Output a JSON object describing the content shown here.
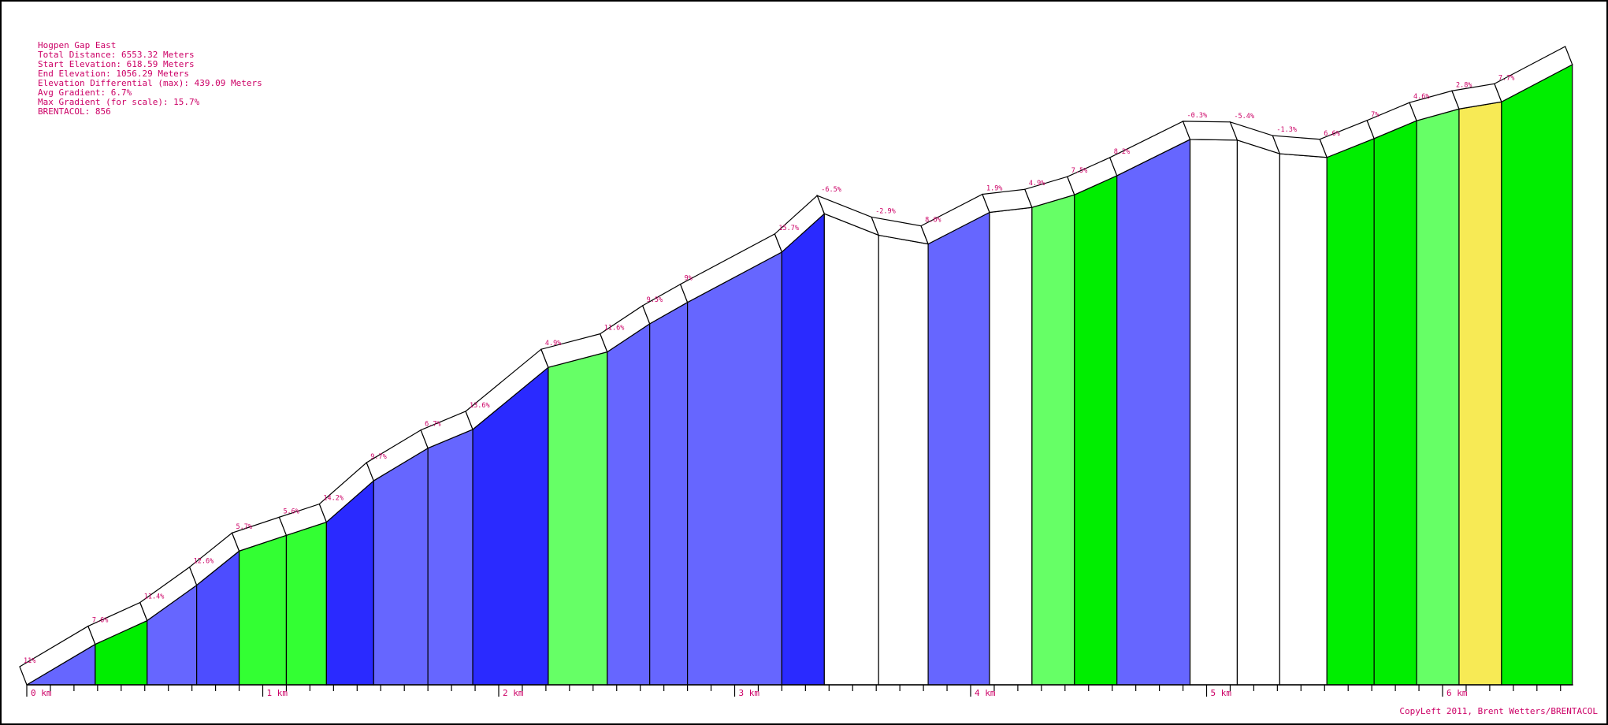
{
  "info": [
    "Hogpen Gap East",
    "Total Distance: 6553.32 Meters",
    "Start Elevation: 618.59 Meters",
    "End Elevation: 1056.29 Meters",
    "Elevation Differential (max): 439.09 Meters",
    "Avg Gradient: 6.7%",
    "Max Gradient (for scale): 15.7%",
    "BRENTACOL: 856"
  ],
  "copyright": "CopyLeft 2011, Brent Wetters/BRENTACOL",
  "colors": {
    "text": "#cc0066",
    "outline": "#000000",
    "white": "#ffffff",
    "blue_light": "#6666ff",
    "blue_mid": "#4d4dff",
    "blue_dark": "#2a2aff",
    "green_light": "#66ff66",
    "green_mid": "#33ff33",
    "green_bright": "#00ee00",
    "yellow": "#f7ea55"
  },
  "chart_data": {
    "type": "area",
    "x_unit": "km",
    "x_ticks": [
      "0 km",
      "1 km",
      "2 km",
      "3 km",
      "4 km",
      "5 km",
      "6 km"
    ],
    "xlim": [
      0,
      6.55332
    ],
    "ylim": [
      618.59,
      1056.29
    ],
    "grid": false,
    "segments": [
      {
        "start_km": 0.0,
        "end_km": 0.29,
        "gradient": "11%",
        "elev_start": 618.6,
        "elev_end": 647.2,
        "color": "blue_light"
      },
      {
        "start_km": 0.29,
        "end_km": 0.51,
        "gradient": "7.6%",
        "elev_start": 647.2,
        "elev_end": 663.9,
        "color": "green_bright"
      },
      {
        "start_km": 0.51,
        "end_km": 0.72,
        "gradient": "11.4%",
        "elev_start": 663.9,
        "elev_end": 688.9,
        "color": "blue_light"
      },
      {
        "start_km": 0.72,
        "end_km": 0.9,
        "gradient": "12.6%",
        "elev_start": 688.9,
        "elev_end": 713.0,
        "color": "blue_mid"
      },
      {
        "start_km": 0.9,
        "end_km": 1.1,
        "gradient": "5.7%",
        "elev_start": 713.0,
        "elev_end": 724.1,
        "color": "green_mid"
      },
      {
        "start_km": 1.1,
        "end_km": 1.27,
        "gradient": "5.6%",
        "elev_start": 724.1,
        "elev_end": 733.4,
        "color": "green_mid"
      },
      {
        "start_km": 1.27,
        "end_km": 1.47,
        "gradient": "14.2%",
        "elev_start": 733.4,
        "elev_end": 762.6,
        "color": "blue_dark"
      },
      {
        "start_km": 1.47,
        "end_km": 1.7,
        "gradient": "9.7%",
        "elev_start": 762.6,
        "elev_end": 785.6,
        "color": "blue_light"
      },
      {
        "start_km": 1.7,
        "end_km": 1.89,
        "gradient": "6.7%",
        "elev_start": 785.6,
        "elev_end": 798.8,
        "color": "blue_light"
      },
      {
        "start_km": 1.89,
        "end_km": 2.21,
        "gradient": "13.6%",
        "elev_start": 798.8,
        "elev_end": 842.6,
        "color": "blue_dark"
      },
      {
        "start_km": 2.21,
        "end_km": 2.46,
        "gradient": "4.9%",
        "elev_start": 842.6,
        "elev_end": 853.5,
        "color": "green_light"
      },
      {
        "start_km": 2.46,
        "end_km": 2.64,
        "gradient": "11.6%",
        "elev_start": 853.5,
        "elev_end": 873.4,
        "color": "blue_light"
      },
      {
        "start_km": 2.64,
        "end_km": 2.8,
        "gradient": "9.5%",
        "elev_start": 873.4,
        "elev_end": 888.5,
        "color": "blue_light"
      },
      {
        "start_km": 2.8,
        "end_km": 3.2,
        "gradient": "9%",
        "elev_start": 888.5,
        "elev_end": 924.0,
        "color": "blue_light"
      },
      {
        "start_km": 3.2,
        "end_km": 3.38,
        "gradient": "15.7%",
        "elev_start": 924.0,
        "elev_end": 951.1,
        "color": "blue_dark"
      },
      {
        "start_km": 3.38,
        "end_km": 3.61,
        "gradient": "-6.5%",
        "elev_start": 951.1,
        "elev_end": 935.9,
        "color": "white"
      },
      {
        "start_km": 3.61,
        "end_km": 3.82,
        "gradient": "-2.9%",
        "elev_start": 935.9,
        "elev_end": 929.7,
        "color": "white"
      },
      {
        "start_km": 3.82,
        "end_km": 4.08,
        "gradient": "8.6%",
        "elev_start": 929.7,
        "elev_end": 952.0,
        "color": "blue_light"
      },
      {
        "start_km": 4.08,
        "end_km": 4.26,
        "gradient": "1.9%",
        "elev_start": 952.0,
        "elev_end": 955.5,
        "color": "white"
      },
      {
        "start_km": 4.26,
        "end_km": 4.44,
        "gradient": "4.9%",
        "elev_start": 955.5,
        "elev_end": 964.4,
        "color": "green_light"
      },
      {
        "start_km": 4.44,
        "end_km": 4.62,
        "gradient": "7.5%",
        "elev_start": 964.4,
        "elev_end": 977.9,
        "color": "green_bright"
      },
      {
        "start_km": 4.62,
        "end_km": 4.93,
        "gradient": "8.2%",
        "elev_start": 977.9,
        "elev_end": 1003.5,
        "color": "blue_light"
      },
      {
        "start_km": 4.93,
        "end_km": 5.13,
        "gradient": "-0.3%",
        "elev_start": 1003.5,
        "elev_end": 1003.0,
        "color": "white"
      },
      {
        "start_km": 5.13,
        "end_km": 5.31,
        "gradient": "-5.4%",
        "elev_start": 1003.0,
        "elev_end": 993.4,
        "color": "white"
      },
      {
        "start_km": 5.31,
        "end_km": 5.51,
        "gradient": "-1.3%",
        "elev_start": 993.4,
        "elev_end": 990.8,
        "color": "white"
      },
      {
        "start_km": 5.51,
        "end_km": 5.71,
        "gradient": "6.6%",
        "elev_start": 990.8,
        "elev_end": 1004.1,
        "color": "green_bright"
      },
      {
        "start_km": 5.71,
        "end_km": 5.89,
        "gradient": "7%",
        "elev_start": 1004.1,
        "elev_end": 1016.7,
        "color": "green_bright"
      },
      {
        "start_km": 5.89,
        "end_km": 6.07,
        "gradient": "4.6%",
        "elev_start": 1016.7,
        "elev_end": 1025.0,
        "color": "green_light"
      },
      {
        "start_km": 6.07,
        "end_km": 6.25,
        "gradient": "2.8%",
        "elev_start": 1025.0,
        "elev_end": 1030.0,
        "color": "yellow"
      },
      {
        "start_km": 6.25,
        "end_km": 6.55,
        "gradient": "7.7%",
        "elev_start": 1030.0,
        "elev_end": 1056.3,
        "color": "green_bright"
      }
    ]
  }
}
